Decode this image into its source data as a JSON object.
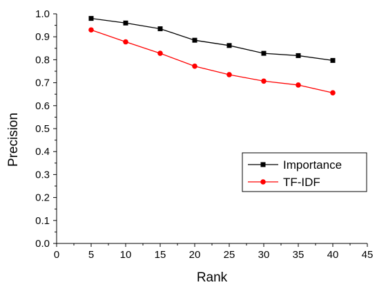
{
  "chart_data": {
    "type": "line",
    "title": "",
    "xlabel": "Rank",
    "ylabel": "Precision",
    "xlim": [
      0,
      45
    ],
    "ylim": [
      0.0,
      1.0
    ],
    "x_ticks": [
      "0",
      "5",
      "10",
      "15",
      "20",
      "25",
      "30",
      "35",
      "40",
      "45"
    ],
    "y_ticks": [
      "0.0",
      "0.1",
      "0.2",
      "0.3",
      "0.4",
      "0.5",
      "0.6",
      "0.7",
      "0.8",
      "0.9",
      "1.0"
    ],
    "grid": false,
    "legend_position": "bottom-right",
    "x": [
      5,
      10,
      15,
      20,
      25,
      30,
      35,
      40
    ],
    "series": [
      {
        "name": "Importance",
        "marker": "square",
        "color": "#000000",
        "values": [
          0.98,
          0.96,
          0.935,
          0.885,
          0.862,
          0.828,
          0.818,
          0.797
        ]
      },
      {
        "name": "TF-IDF",
        "marker": "circle",
        "color": "#ff0000",
        "values": [
          0.93,
          0.878,
          0.828,
          0.772,
          0.735,
          0.707,
          0.69,
          0.656
        ]
      }
    ]
  }
}
